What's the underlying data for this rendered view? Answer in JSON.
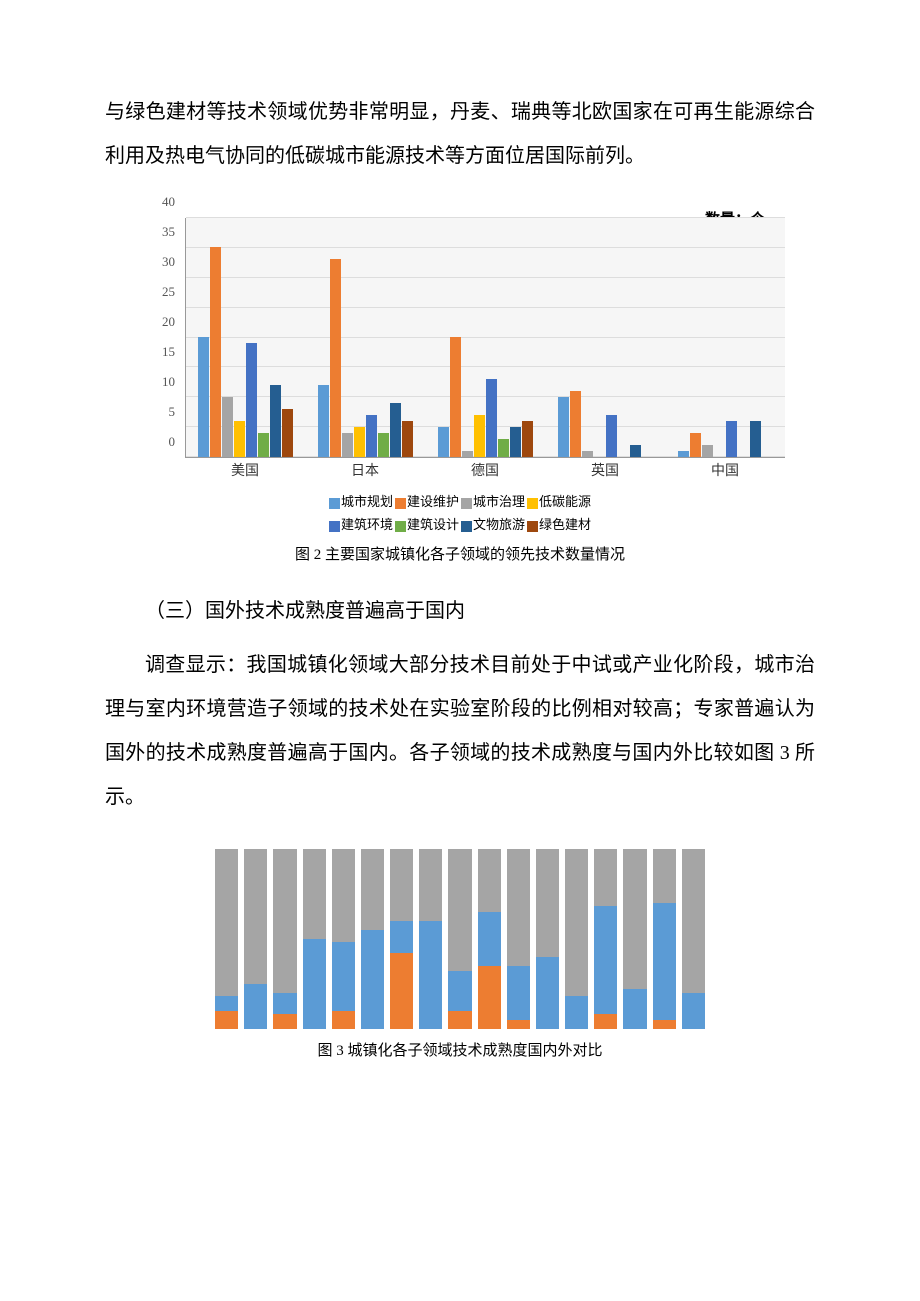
{
  "text": {
    "para1": "与绿色建材等技术领域优势非常明显，丹麦、瑞典等北欧国家在可再生能源综合利用及热电气协同的低碳城市能源技术等方面位居国际前列。",
    "caption1": "图 2 主要国家城镇化各子领域的领先技术数量情况",
    "heading1": "（三）国外技术成熟度普遍高于国内",
    "para2": "调查显示：我国城镇化领域大部分技术目前处于中试或产业化阶段，城市治理与室内环境营造子领域的技术处在实验室阶段的比例相对较高；专家普遍认为国外的技术成熟度普遍高于国内。各子领域的技术成熟度与国内外比较如图 3 所示。",
    "caption2": "图 3 城镇化各子领域技术成熟度国内外对比"
  },
  "chart1": {
    "unit_label": "数量：个",
    "ymax": 40,
    "yticks": [
      0,
      5,
      10,
      15,
      20,
      25,
      30,
      35,
      40
    ],
    "colors": {
      "city_plan": "#5b9bd5",
      "build_maint": "#ed7d31",
      "city_gov": "#a5a5a5",
      "low_carbon": "#ffc000",
      "build_env": "#4472c4",
      "build_design": "#70ad47",
      "culture": "#255e91",
      "green_mat": "#9e480e",
      "bg": "#f6f6f6",
      "grid": "#dddddd"
    },
    "categories": [
      "美国",
      "日本",
      "德国",
      "英国",
      "中国"
    ],
    "series_labels": {
      "city_plan": "城市规划",
      "build_maint": "建设维护",
      "city_gov": "城市治理",
      "low_carbon": "低碳能源",
      "build_env": "建筑环境",
      "build_design": "建筑设计",
      "culture": "文物旅游",
      "green_mat": "绿色建材"
    },
    "data": [
      {
        "country": "美国",
        "values": [
          20,
          35,
          10,
          6,
          19,
          4,
          12,
          8
        ]
      },
      {
        "country": "日本",
        "values": [
          12,
          33,
          4,
          5,
          7,
          4,
          9,
          6
        ]
      },
      {
        "country": "德国",
        "values": [
          5,
          20,
          1,
          7,
          13,
          3,
          5,
          6
        ]
      },
      {
        "country": "英国",
        "values": [
          10,
          11,
          1,
          0,
          7,
          0,
          2,
          0
        ]
      },
      {
        "country": "中国",
        "values": [
          1,
          4,
          2,
          0,
          6,
          0,
          6,
          0
        ]
      }
    ]
  },
  "chart2": {
    "colors": {
      "orange": "#ed7d31",
      "blue": "#5b9bd5",
      "gray": "#a5a5a5"
    },
    "bars": [
      {
        "orange": 10,
        "blue": 8,
        "gray": 82
      },
      {
        "orange": 0,
        "blue": 25,
        "gray": 75
      },
      {
        "orange": 8,
        "blue": 12,
        "gray": 80
      },
      {
        "orange": 0,
        "blue": 50,
        "gray": 50
      },
      {
        "orange": 10,
        "blue": 38,
        "gray": 52
      },
      {
        "orange": 0,
        "blue": 55,
        "gray": 45
      },
      {
        "orange": 42,
        "blue": 18,
        "gray": 40
      },
      {
        "orange": 0,
        "blue": 60,
        "gray": 40
      },
      {
        "orange": 10,
        "blue": 22,
        "gray": 68
      },
      {
        "orange": 35,
        "blue": 30,
        "gray": 35
      },
      {
        "orange": 5,
        "blue": 30,
        "gray": 65
      },
      {
        "orange": 0,
        "blue": 40,
        "gray": 60
      },
      {
        "orange": 0,
        "blue": 18,
        "gray": 82
      },
      {
        "orange": 8,
        "blue": 60,
        "gray": 32
      },
      {
        "orange": 0,
        "blue": 22,
        "gray": 78
      },
      {
        "orange": 5,
        "blue": 65,
        "gray": 30
      },
      {
        "orange": 0,
        "blue": 20,
        "gray": 80
      }
    ]
  }
}
